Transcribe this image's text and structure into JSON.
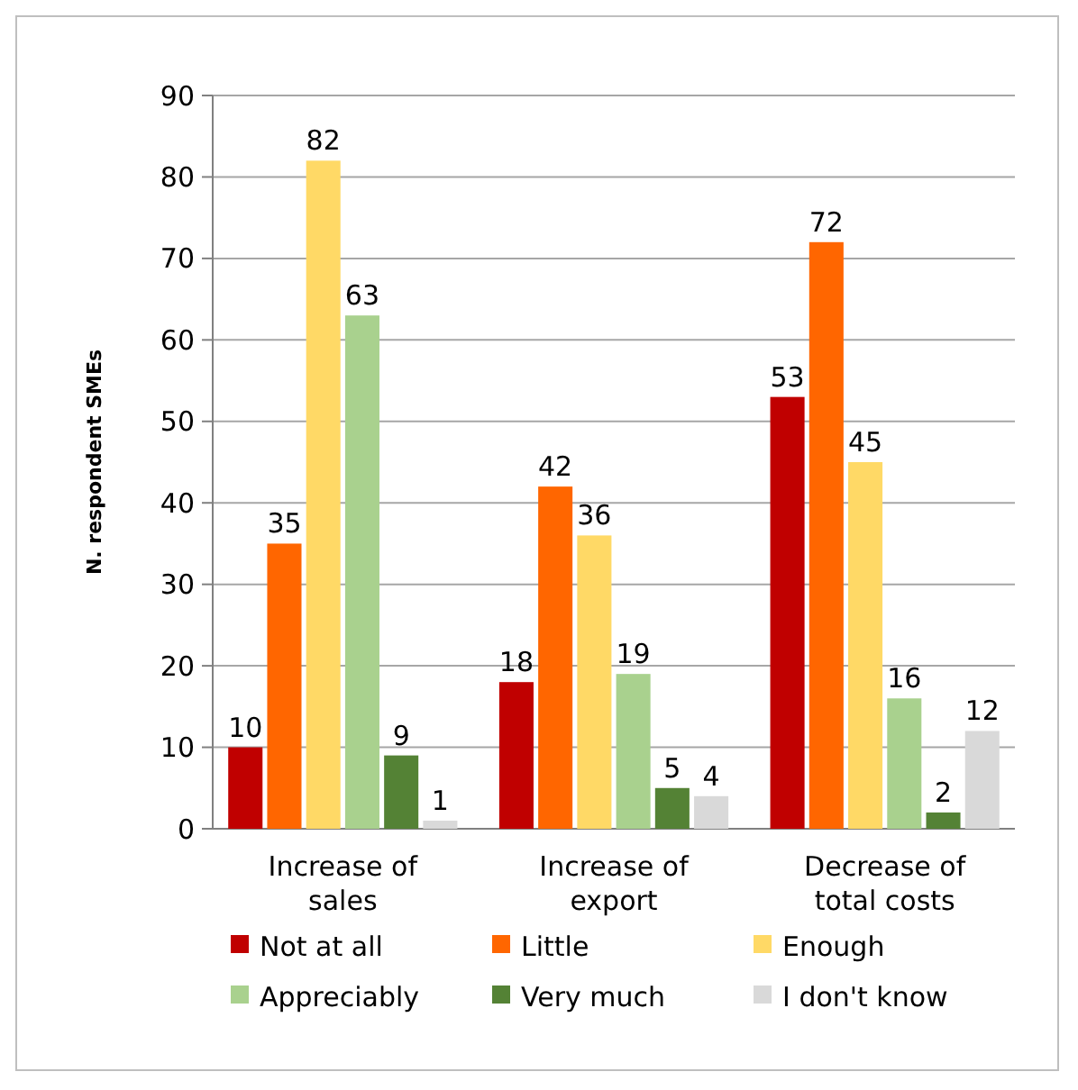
{
  "chart_data": {
    "type": "bar",
    "ylabel": "N. respondent SMEs",
    "categories": [
      "Increase of sales",
      "Increase of export",
      "Decrease of total costs"
    ],
    "series": [
      {
        "name": "Not at all",
        "color": "#c00000",
        "values": [
          10,
          18,
          53
        ]
      },
      {
        "name": "Little",
        "color": "#ff6600",
        "values": [
          35,
          42,
          72
        ]
      },
      {
        "name": "Enough",
        "color": "#ffd966",
        "values": [
          82,
          36,
          45
        ]
      },
      {
        "name": "Appreciably",
        "color": "#a9d18e",
        "values": [
          63,
          19,
          16
        ]
      },
      {
        "name": "Very much",
        "color": "#548235",
        "values": [
          9,
          5,
          2
        ]
      },
      {
        "name": "I don't know",
        "color": "#d9d9d9",
        "values": [
          1,
          4,
          12
        ]
      }
    ],
    "ylim": [
      0,
      90
    ],
    "yticks": [
      0,
      10,
      20,
      30,
      40,
      50,
      60,
      70,
      80,
      90
    ],
    "grid": "y",
    "data_labels": true,
    "legend": "bottom"
  }
}
